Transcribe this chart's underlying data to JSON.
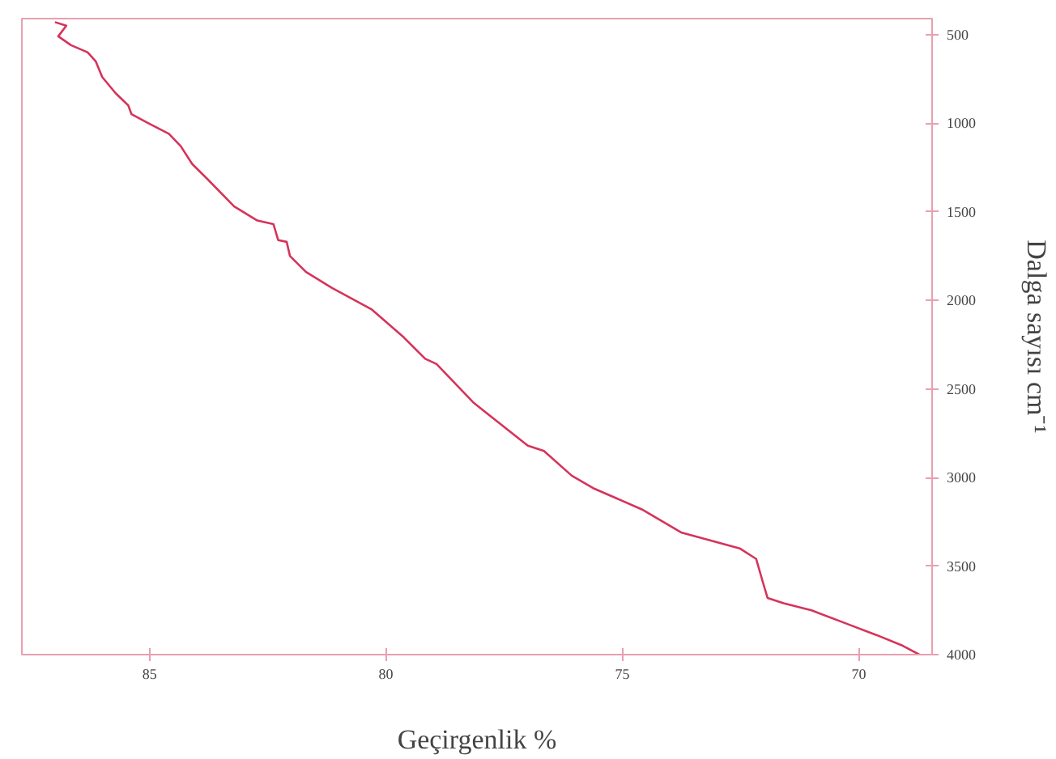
{
  "chart_data": {
    "type": "line",
    "xlabel": "Geçirgenlik %",
    "ylabel": "Dalga sayısı cm⁻¹",
    "xlim": [
      87.7,
      68.45
    ],
    "ylim": [
      4000,
      410
    ],
    "xticks": [
      85,
      80,
      75,
      70
    ],
    "yticks": [
      500,
      1000,
      1500,
      2000,
      2500,
      3000,
      3500,
      4000
    ],
    "grid": false,
    "series": [
      {
        "color": "#d6335a",
        "x": [
          87.0,
          86.76,
          86.93,
          86.66,
          86.31,
          86.14,
          86.0,
          85.72,
          85.45,
          85.38,
          85.03,
          84.59,
          84.34,
          84.1,
          83.76,
          83.21,
          82.72,
          82.38,
          82.28,
          82.1,
          82.03,
          81.69,
          81.14,
          80.31,
          79.62,
          79.17,
          78.93,
          78.14,
          77.0,
          76.66,
          76.07,
          75.62,
          74.59,
          73.76,
          72.52,
          72.17,
          72.03,
          71.93,
          71.59,
          71.0,
          70.31,
          69.62,
          69.07,
          68.72
        ],
        "values": [
          430,
          450,
          510,
          560,
          600,
          650,
          740,
          830,
          900,
          950,
          1000,
          1060,
          1130,
          1230,
          1320,
          1470,
          1550,
          1570,
          1660,
          1670,
          1750,
          1840,
          1930,
          2050,
          2210,
          2330,
          2360,
          2580,
          2820,
          2850,
          2990,
          3060,
          3180,
          3310,
          3400,
          3460,
          3590,
          3680,
          3710,
          3750,
          3820,
          3890,
          3950,
          4000
        ]
      }
    ]
  }
}
